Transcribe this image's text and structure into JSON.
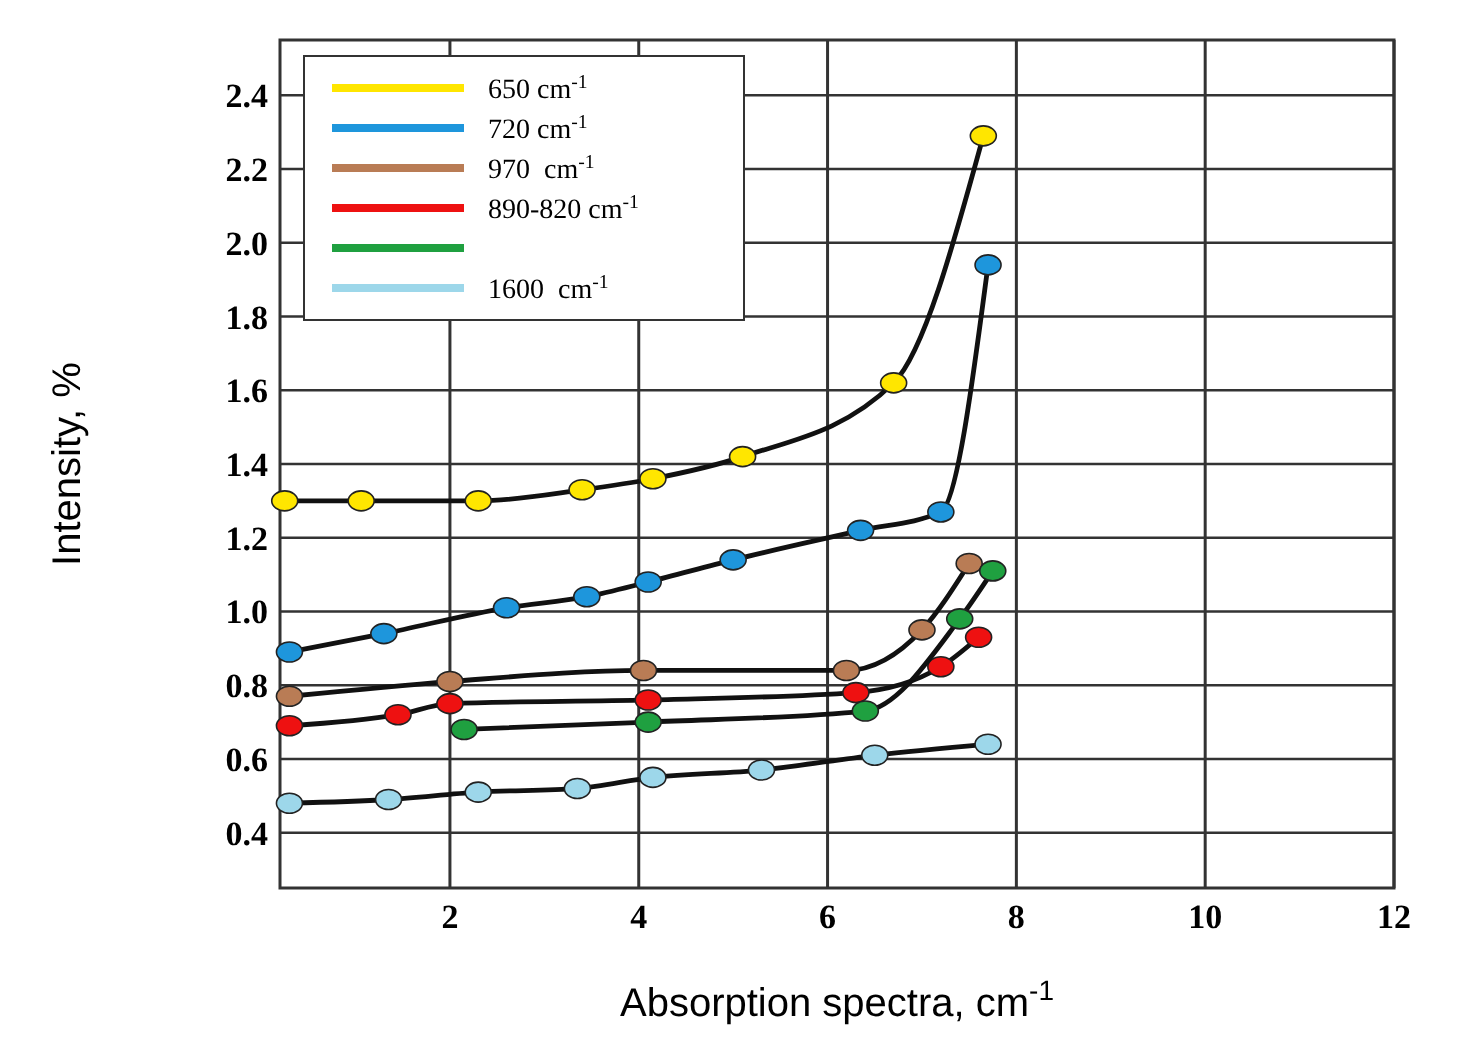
{
  "chart_data": {
    "type": "line",
    "xlabel": "Absorption spectra, cm$^{-1}$",
    "ylabel": "Intensity, %",
    "xlim": [
      0.2,
      12
    ],
    "xticks": [
      2,
      4,
      6,
      8,
      10,
      12
    ],
    "ylim": [
      0.25,
      2.55
    ],
    "yticks": [
      0.4,
      0.6,
      0.8,
      {
        "value": 1,
        "label": "1.0"
      },
      1.2,
      1.4,
      1.6,
      1.8,
      {
        "value": 2,
        "label": "2.0"
      },
      2.2,
      2.4
    ],
    "grid": true,
    "legend": "top left",
    "marker": "circle",
    "line_style": "solid",
    "series": [
      {
        "name": "650 cm$^{-1}$",
        "color": "#ffe600",
        "x": [
          0.25,
          1.06,
          2.3,
          3.4,
          4.15,
          5.1,
          6.7,
          7.65
        ],
        "values": [
          1.3,
          1.3,
          1.3,
          1.33,
          1.36,
          1.42,
          1.62,
          2.29
        ]
      },
      {
        "name": "720 cm$^{-1}$",
        "color": "#1e96dc",
        "x": [
          0.3,
          1.3,
          2.6,
          3.45,
          4.1,
          5.0,
          6.35,
          7.2,
          7.7
        ],
        "values": [
          0.89,
          0.94,
          1.01,
          1.04,
          1.08,
          1.14,
          1.22,
          1.27,
          1.94
        ]
      },
      {
        "name": "970  cm$^{-1}$",
        "color": "#b97c55",
        "x": [
          0.3,
          2.0,
          4.05,
          6.2,
          7.0,
          7.5
        ],
        "values": [
          0.77,
          0.81,
          0.84,
          0.84,
          0.95,
          1.13
        ]
      },
      {
        "name": "890-820 cm$^{-1}$",
        "color": "#ee1111",
        "x": [
          0.3,
          1.45,
          2.0,
          4.1,
          6.3,
          7.2,
          7.6
        ],
        "values": [
          0.69,
          0.72,
          0.75,
          0.76,
          0.78,
          0.85,
          0.93
        ]
      },
      {
        "color": "#1fa040",
        "x": [
          2.15,
          4.1,
          6.4,
          7.4,
          7.75
        ],
        "values": [
          0.68,
          0.7,
          0.73,
          0.98,
          1.11
        ]
      },
      {
        "name": "1600  cm$^{-1}$",
        "color": "#9dd7ea",
        "x": [
          0.3,
          1.35,
          2.3,
          3.35,
          4.15,
          5.3,
          6.5,
          7.7
        ],
        "values": [
          0.48,
          0.49,
          0.51,
          0.52,
          0.55,
          0.57,
          0.61,
          0.64
        ]
      }
    ]
  }
}
